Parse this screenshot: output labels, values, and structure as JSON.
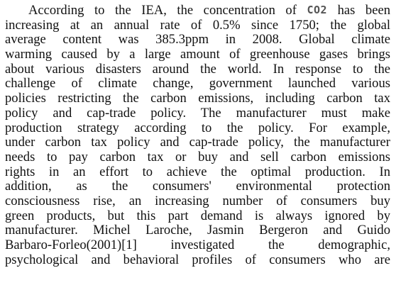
{
  "paragraph": {
    "first_line_before": "According to the IEA, the concentration of ",
    "co2_formula": "CO2",
    "first_line_after": " has been",
    "lines": [
      "increasing at an annual rate of 0.5% since 1750; the global",
      "average content was 385.3ppm in 2008. Global climate",
      "warming caused by a large amount of greenhouse gases brings",
      "about various disasters around the world. In response to the",
      "challenge of climate change, government launched various",
      "policies restricting the carbon emissions, including carbon tax",
      "policy and cap-trade policy. The manufacturer must make",
      "production strategy according to the policy. For example,",
      "under carbon tax policy and cap-trade policy, the manufacturer",
      "needs to pay carbon tax or buy and sell carbon emissions",
      "rights in an effort to achieve the optimal production. In",
      "addition, as the consumers' environmental protection",
      "consciousness rise, an increasing number of consumers buy",
      "green products, but this part demand is always ignored by",
      "manufacturer. Michel Laroche, Jasmin Bergeron and Guido",
      "Barbaro-Forleo(2001)[1] investigated the demographic,",
      "psychological and behavioral profiles of consumers who are"
    ]
  }
}
